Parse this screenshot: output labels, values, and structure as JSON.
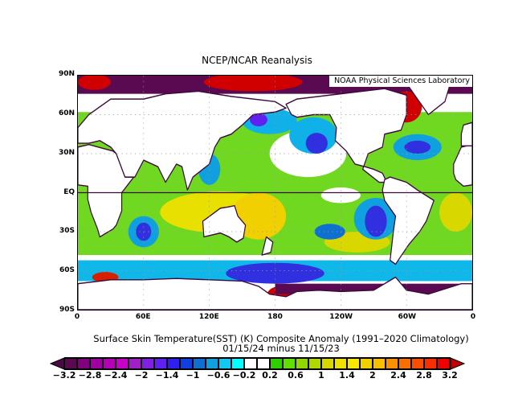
{
  "title": "NCEP/NCAR Reanalysis",
  "credit": "NOAA Physical Sciences Laboratory",
  "map": {
    "projection": "cylindrical equidistant",
    "lon_range": [
      0,
      360
    ],
    "lat_range": [
      -90,
      90
    ],
    "lat_ticks": [
      {
        "value": 90,
        "label": "90N"
      },
      {
        "value": 60,
        "label": "60N"
      },
      {
        "value": 30,
        "label": "30N"
      },
      {
        "value": 0,
        "label": "EQ"
      },
      {
        "value": -30,
        "label": "30S"
      },
      {
        "value": -60,
        "label": "60S"
      },
      {
        "value": -90,
        "label": "90S"
      }
    ],
    "lon_ticks": [
      {
        "value": 0,
        "label": "0"
      },
      {
        "value": 60,
        "label": "60E"
      },
      {
        "value": 120,
        "label": "120E"
      },
      {
        "value": 180,
        "label": "180"
      },
      {
        "value": 240,
        "label": "120W"
      },
      {
        "value": 300,
        "label": "60W"
      },
      {
        "value": 360,
        "label": "0"
      }
    ],
    "land_color": "#ffffff",
    "outline_color": "#3c0a3c"
  },
  "caption": {
    "line1": "Surface Skin Temperature(SST) (K) Composite Anomaly (1991–2020 Climatology)",
    "line2": "01/15/24 minus 11/15/23"
  },
  "colorbar": {
    "labels": [
      "−3.2",
      "−2.8",
      "−2.4",
      "−2",
      "−1.4",
      "−1",
      "−0.6",
      "−0.2",
      "0.2",
      "0.6",
      "1",
      "1.4",
      "2",
      "2.4",
      "2.8",
      "3.2"
    ],
    "under_color": "#4a0a46",
    "over_color": "#c00000",
    "colors": [
      "#5a0a50",
      "#800080",
      "#a000a0",
      "#b400b4",
      "#c800c8",
      "#a020c8",
      "#8020e0",
      "#6020f0",
      "#3020f0",
      "#1040e0",
      "#1070d0",
      "#10a0e0",
      "#10c8f0",
      "#00ffff",
      "#ffffff",
      "#ffffff",
      "#30d000",
      "#60e000",
      "#90d800",
      "#b0d800",
      "#d8d800",
      "#f0e000",
      "#f8e800",
      "#f0d000",
      "#f8c000",
      "#f89000",
      "#f87000",
      "#f85000",
      "#f83000",
      "#f00000"
    ]
  }
}
